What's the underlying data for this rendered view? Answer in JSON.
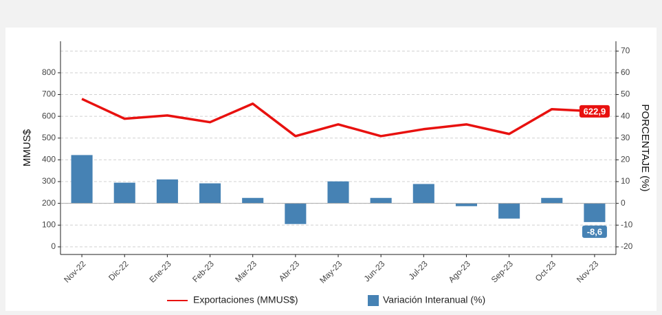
{
  "chart_data": {
    "type": "bar_line",
    "categories": [
      "Nov-22",
      "Dic-22",
      "Ene-23",
      "Feb-23",
      "Mar-23",
      "Abr-23",
      "May-23",
      "Jun-23",
      "Jul-23",
      "Ago-23",
      "Sep-23",
      "Oct-23",
      "Nov-23"
    ],
    "y_label": "MMUS$",
    "y2_label": "PORCENTAJE (%)",
    "ylim": [
      -35,
      945
    ],
    "yticks": [
      0,
      100,
      200,
      300,
      400,
      500,
      600,
      700,
      800
    ],
    "y2lim": [
      -23.5,
      74.5
    ],
    "y2ticks": [
      -20,
      -10,
      0,
      10,
      20,
      30,
      40,
      50,
      60,
      70
    ],
    "grid": true,
    "series": [
      {
        "name": "Exportaciones (MMUS$)",
        "type": "line",
        "color": "#e8110f",
        "values": [
          680,
          589,
          604,
          573,
          658,
          509,
          563,
          509,
          541,
          563,
          519,
          633,
          622.9
        ],
        "value_labels": [
          null,
          null,
          null,
          null,
          null,
          null,
          null,
          null,
          null,
          null,
          null,
          null,
          "622,9"
        ]
      },
      {
        "name": "Variación Interanual (%)",
        "type": "bar",
        "axis": "y2",
        "color": "#4682b4",
        "values": [
          22.2,
          9.5,
          11,
          9.2,
          2.5,
          -9.5,
          10.1,
          2.5,
          8.9,
          -1.3,
          -7,
          2.5,
          -8.6
        ],
        "value_labels": [
          null,
          null,
          null,
          null,
          null,
          null,
          null,
          null,
          null,
          null,
          null,
          null,
          "-8,6"
        ]
      }
    ]
  }
}
